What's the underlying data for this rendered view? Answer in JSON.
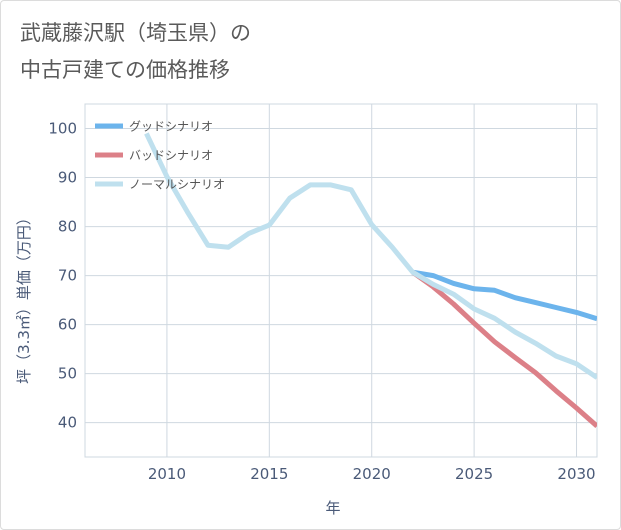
{
  "title_lines": [
    "武蔵藤沢駅（埼玉県）の",
    "中古戸建ての価格推移"
  ],
  "chart_data": {
    "type": "line",
    "title": "武蔵藤沢駅（埼玉県）の中古戸建ての価格推移",
    "xlabel": "年",
    "ylabel": "坪（3.3㎡）単価（万円）",
    "xlim": [
      2006,
      2031
    ],
    "ylim": [
      33,
      105
    ],
    "xticks": [
      2010,
      2015,
      2020,
      2025,
      2030
    ],
    "yticks": [
      40,
      50,
      60,
      70,
      80,
      90,
      100
    ],
    "grid": true,
    "legend_position": "top-left",
    "series": [
      {
        "name": "グッドシナリオ",
        "color": "#6cb4ec",
        "points": [
          [
            2022,
            70.7
          ],
          [
            2023,
            70.0
          ],
          [
            2024,
            68.4
          ],
          [
            2025,
            67.3
          ],
          [
            2026,
            67.0
          ],
          [
            2027,
            65.5
          ],
          [
            2028,
            64.5
          ],
          [
            2029,
            63.5
          ],
          [
            2030,
            62.5
          ],
          [
            2031,
            61.2
          ]
        ]
      },
      {
        "name": "バッドシナリオ",
        "color": "#dc8088",
        "points": [
          [
            2022,
            70.7
          ],
          [
            2023,
            67.7
          ],
          [
            2024,
            64.2
          ],
          [
            2025,
            60.3
          ],
          [
            2026,
            56.5
          ],
          [
            2027,
            53.3
          ],
          [
            2028,
            50.2
          ],
          [
            2029,
            46.5
          ],
          [
            2030,
            43.0
          ],
          [
            2031,
            39.3
          ]
        ]
      },
      {
        "name": "ノーマルシナリオ",
        "color": "#bfe0ee",
        "points": [
          [
            2009,
            99.0
          ],
          [
            2010,
            90.2
          ],
          [
            2011,
            83.0
          ],
          [
            2012,
            76.2
          ],
          [
            2013,
            75.8
          ],
          [
            2014,
            78.6
          ],
          [
            2015,
            80.3
          ],
          [
            2016,
            85.8
          ],
          [
            2017,
            88.5
          ],
          [
            2018,
            88.5
          ],
          [
            2019,
            87.5
          ],
          [
            2020,
            80.4
          ],
          [
            2021,
            75.8
          ],
          [
            2022,
            70.7
          ],
          [
            2023,
            68.2
          ],
          [
            2024,
            66.2
          ],
          [
            2025,
            63.2
          ],
          [
            2026,
            61.3
          ],
          [
            2027,
            58.5
          ],
          [
            2028,
            56.2
          ],
          [
            2029,
            53.6
          ],
          [
            2030,
            52.0
          ],
          [
            2031,
            49.2
          ]
        ]
      }
    ]
  }
}
